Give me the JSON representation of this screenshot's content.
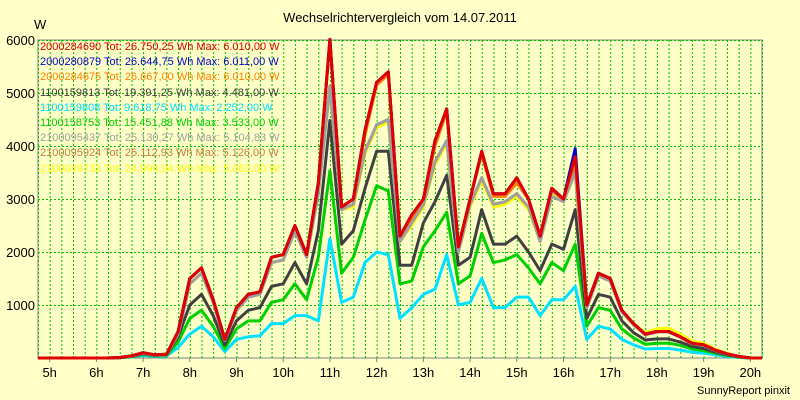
{
  "chart_data": {
    "type": "line",
    "title": "Wechselrichtervergleich vom 14.07.2011",
    "ylabel": "W",
    "footer": "SunnyReport pinxit",
    "x_tick_labels": [
      "5h",
      "6h",
      "7h",
      "8h",
      "9h",
      "10h",
      "11h",
      "12h",
      "13h",
      "14h",
      "15h",
      "16h",
      "17h",
      "18h",
      "19h",
      "20h"
    ],
    "y_tick_labels": [
      "1000",
      "2000",
      "3000",
      "4000",
      "5000",
      "6000"
    ],
    "ylim": [
      0,
      6000
    ],
    "xlim": [
      4.75,
      20.25
    ],
    "grid": true,
    "legend_placement": "top-left",
    "x": [
      4.75,
      5,
      5.25,
      5.5,
      5.75,
      6,
      6.25,
      6.5,
      6.75,
      7,
      7.25,
      7.5,
      7.75,
      8,
      8.25,
      8.5,
      8.75,
      9,
      9.25,
      9.5,
      9.75,
      10,
      10.25,
      10.5,
      10.75,
      11,
      11.25,
      11.5,
      11.75,
      12,
      12.25,
      12.5,
      12.75,
      13,
      13.25,
      13.5,
      13.75,
      14,
      14.25,
      14.5,
      14.75,
      15,
      15.25,
      15.5,
      15.75,
      16,
      16.25,
      16.5,
      16.75,
      17,
      17.25,
      17.5,
      17.75,
      18,
      18.25,
      18.5,
      18.75,
      19,
      19.25,
      19.5,
      19.75,
      20,
      20.25
    ],
    "series": [
      {
        "name": "2000284690",
        "label": "2000284690 Tot: 26.750,25 Wh Max: 6.010,00 W",
        "color": "#e00000",
        "values": [
          0,
          0,
          0,
          0,
          0,
          0,
          0,
          10,
          40,
          100,
          60,
          70,
          500,
          1500,
          1700,
          1100,
          350,
          950,
          1200,
          1250,
          1900,
          1950,
          2500,
          1950,
          3300,
          6010,
          2850,
          3000,
          4300,
          5200,
          5400,
          2300,
          2700,
          3000,
          4100,
          4700,
          2100,
          3000,
          3900,
          3100,
          3100,
          3400,
          3000,
          2300,
          3200,
          3000,
          3800,
          1000,
          1600,
          1500,
          900,
          650,
          450,
          500,
          500,
          400,
          280,
          250,
          150,
          80,
          30,
          0,
          0
        ]
      },
      {
        "name": "2000280879",
        "label": "2000280879 Tot: 26.644,75 Wh Max: 6.011,00 W",
        "color": "#0000c8",
        "values": [
          0,
          0,
          0,
          0,
          0,
          0,
          0,
          10,
          40,
          100,
          60,
          70,
          500,
          1500,
          1700,
          1100,
          350,
          950,
          1200,
          1250,
          1900,
          1950,
          2500,
          1950,
          3300,
          6011,
          2850,
          3000,
          4300,
          5200,
          5400,
          2300,
          2700,
          3000,
          4100,
          4700,
          2100,
          3000,
          3900,
          3100,
          3100,
          3400,
          3000,
          2300,
          3200,
          3000,
          3950,
          1000,
          1600,
          1500,
          900,
          650,
          450,
          500,
          500,
          400,
          280,
          250,
          150,
          80,
          30,
          0,
          0
        ]
      },
      {
        "name": "2000284675",
        "label": "2000284675 Tot: 26.667,00 Wh Max: 6.010,00 W",
        "color": "#ff8000",
        "values": [
          0,
          0,
          0,
          0,
          0,
          0,
          0,
          10,
          40,
          100,
          60,
          70,
          500,
          1500,
          1700,
          1100,
          350,
          950,
          1200,
          1250,
          1900,
          1950,
          2500,
          1950,
          3300,
          6010,
          2850,
          3000,
          4200,
          5150,
          5350,
          2300,
          2650,
          3000,
          4000,
          4650,
          2100,
          3000,
          3850,
          3050,
          3050,
          3300,
          3000,
          2300,
          3200,
          3000,
          3750,
          1000,
          1600,
          1500,
          900,
          650,
          450,
          500,
          500,
          400,
          280,
          250,
          150,
          80,
          30,
          0,
          0
        ]
      },
      {
        "name": "1100159813",
        "label": "1100159813 Tot: 19.391,25 Wh Max: 4.481,00 W",
        "color": "#404040",
        "values": [
          0,
          0,
          0,
          0,
          0,
          0,
          0,
          5,
          30,
          80,
          50,
          60,
          400,
          1000,
          1200,
          800,
          250,
          700,
          900,
          950,
          1350,
          1400,
          1800,
          1400,
          2400,
          4481,
          2150,
          2400,
          3200,
          3900,
          3900,
          1750,
          1750,
          2550,
          2950,
          3450,
          1750,
          1900,
          2800,
          2150,
          2150,
          2300,
          2000,
          1650,
          2150,
          2050,
          2800,
          750,
          1200,
          1150,
          700,
          480,
          340,
          360,
          360,
          300,
          220,
          180,
          110,
          60,
          20,
          0,
          0
        ]
      },
      {
        "name": "1100159808",
        "label": "1100159808 Tot: 9.618,75 Wh Max: 2.252,00 W",
        "color": "#00e0ff",
        "values": [
          0,
          0,
          0,
          0,
          0,
          0,
          0,
          5,
          20,
          50,
          30,
          40,
          200,
          450,
          600,
          400,
          120,
          350,
          400,
          420,
          650,
          650,
          800,
          800,
          700,
          2252,
          1050,
          1150,
          1800,
          2000,
          1950,
          750,
          950,
          1200,
          1300,
          1950,
          1000,
          1050,
          1500,
          950,
          950,
          1150,
          1150,
          800,
          1100,
          1100,
          1350,
          350,
          600,
          550,
          350,
          250,
          170,
          180,
          180,
          150,
          110,
          90,
          60,
          30,
          10,
          0,
          0
        ]
      },
      {
        "name": "1100158753",
        "label": "1100158753 Tot: 15.451,88 Wh Max: 3.533,00 W",
        "color": "#00d000",
        "values": [
          0,
          0,
          0,
          0,
          0,
          0,
          0,
          5,
          25,
          70,
          40,
          50,
          300,
          750,
          900,
          600,
          180,
          550,
          700,
          700,
          1050,
          1100,
          1400,
          1100,
          1900,
          3533,
          1600,
          1900,
          2600,
          3250,
          3150,
          1400,
          1450,
          2100,
          2400,
          2750,
          1400,
          1550,
          2350,
          1800,
          1850,
          1950,
          1700,
          1400,
          1800,
          1650,
          2150,
          600,
          950,
          900,
          550,
          380,
          260,
          280,
          280,
          240,
          170,
          140,
          90,
          50,
          15,
          0,
          0
        ]
      },
      {
        "name": "2100095437",
        "label": "2100095437 Tot: 25.130,27 Wh Max: 5.104,83 W",
        "color": "#a0a0a0",
        "values": [
          0,
          0,
          0,
          0,
          0,
          0,
          0,
          10,
          35,
          90,
          55,
          65,
          450,
          1400,
          1600,
          1050,
          330,
          900,
          1150,
          1200,
          1800,
          1850,
          2400,
          1900,
          3100,
          5104,
          2800,
          2900,
          3900,
          4400,
          4500,
          2200,
          2550,
          2900,
          3700,
          4100,
          2000,
          2900,
          3400,
          2900,
          2950,
          3100,
          2850,
          2200,
          3050,
          2950,
          3500,
          950,
          1550,
          1450,
          870,
          630,
          440,
          490,
          490,
          390,
          270,
          240,
          140,
          75,
          25,
          0,
          0
        ]
      },
      {
        "name": "2100095924",
        "label": "2100095924 Tot: 25.112,93 Wh Max: 5.126,00 W",
        "color": "#c08040",
        "values": [
          0,
          0,
          0,
          0,
          0,
          0,
          0,
          10,
          35,
          90,
          55,
          65,
          450,
          1400,
          1600,
          1050,
          330,
          900,
          1150,
          1200,
          1800,
          1850,
          2400,
          1900,
          3100,
          5126,
          2800,
          2900,
          3900,
          4400,
          4500,
          2200,
          2550,
          2900,
          3700,
          4100,
          2000,
          2900,
          3400,
          2900,
          2950,
          3100,
          2850,
          2250,
          3150,
          3000,
          3550,
          950,
          1550,
          1450,
          870,
          630,
          440,
          490,
          490,
          390,
          270,
          240,
          140,
          75,
          25,
          0,
          0
        ]
      },
      {
        "name": "2100049733",
        "label": "2100049733 Tot: 24.994,94 Wh Max: 5.062,00 W",
        "color": "#ffff00",
        "values": [
          0,
          0,
          0,
          0,
          0,
          0,
          0,
          10,
          35,
          90,
          55,
          65,
          450,
          1400,
          1600,
          1050,
          330,
          900,
          1150,
          1200,
          1800,
          1850,
          2400,
          1900,
          3100,
          5062,
          2800,
          2850,
          3850,
          4350,
          4450,
          2200,
          2500,
          2850,
          3650,
          4050,
          2000,
          2850,
          3350,
          2850,
          2900,
          3050,
          2800,
          2200,
          3100,
          2950,
          3500,
          950,
          1550,
          1450,
          870,
          650,
          480,
          550,
          560,
          450,
          320,
          280,
          170,
          90,
          30,
          0,
          0
        ]
      }
    ]
  }
}
